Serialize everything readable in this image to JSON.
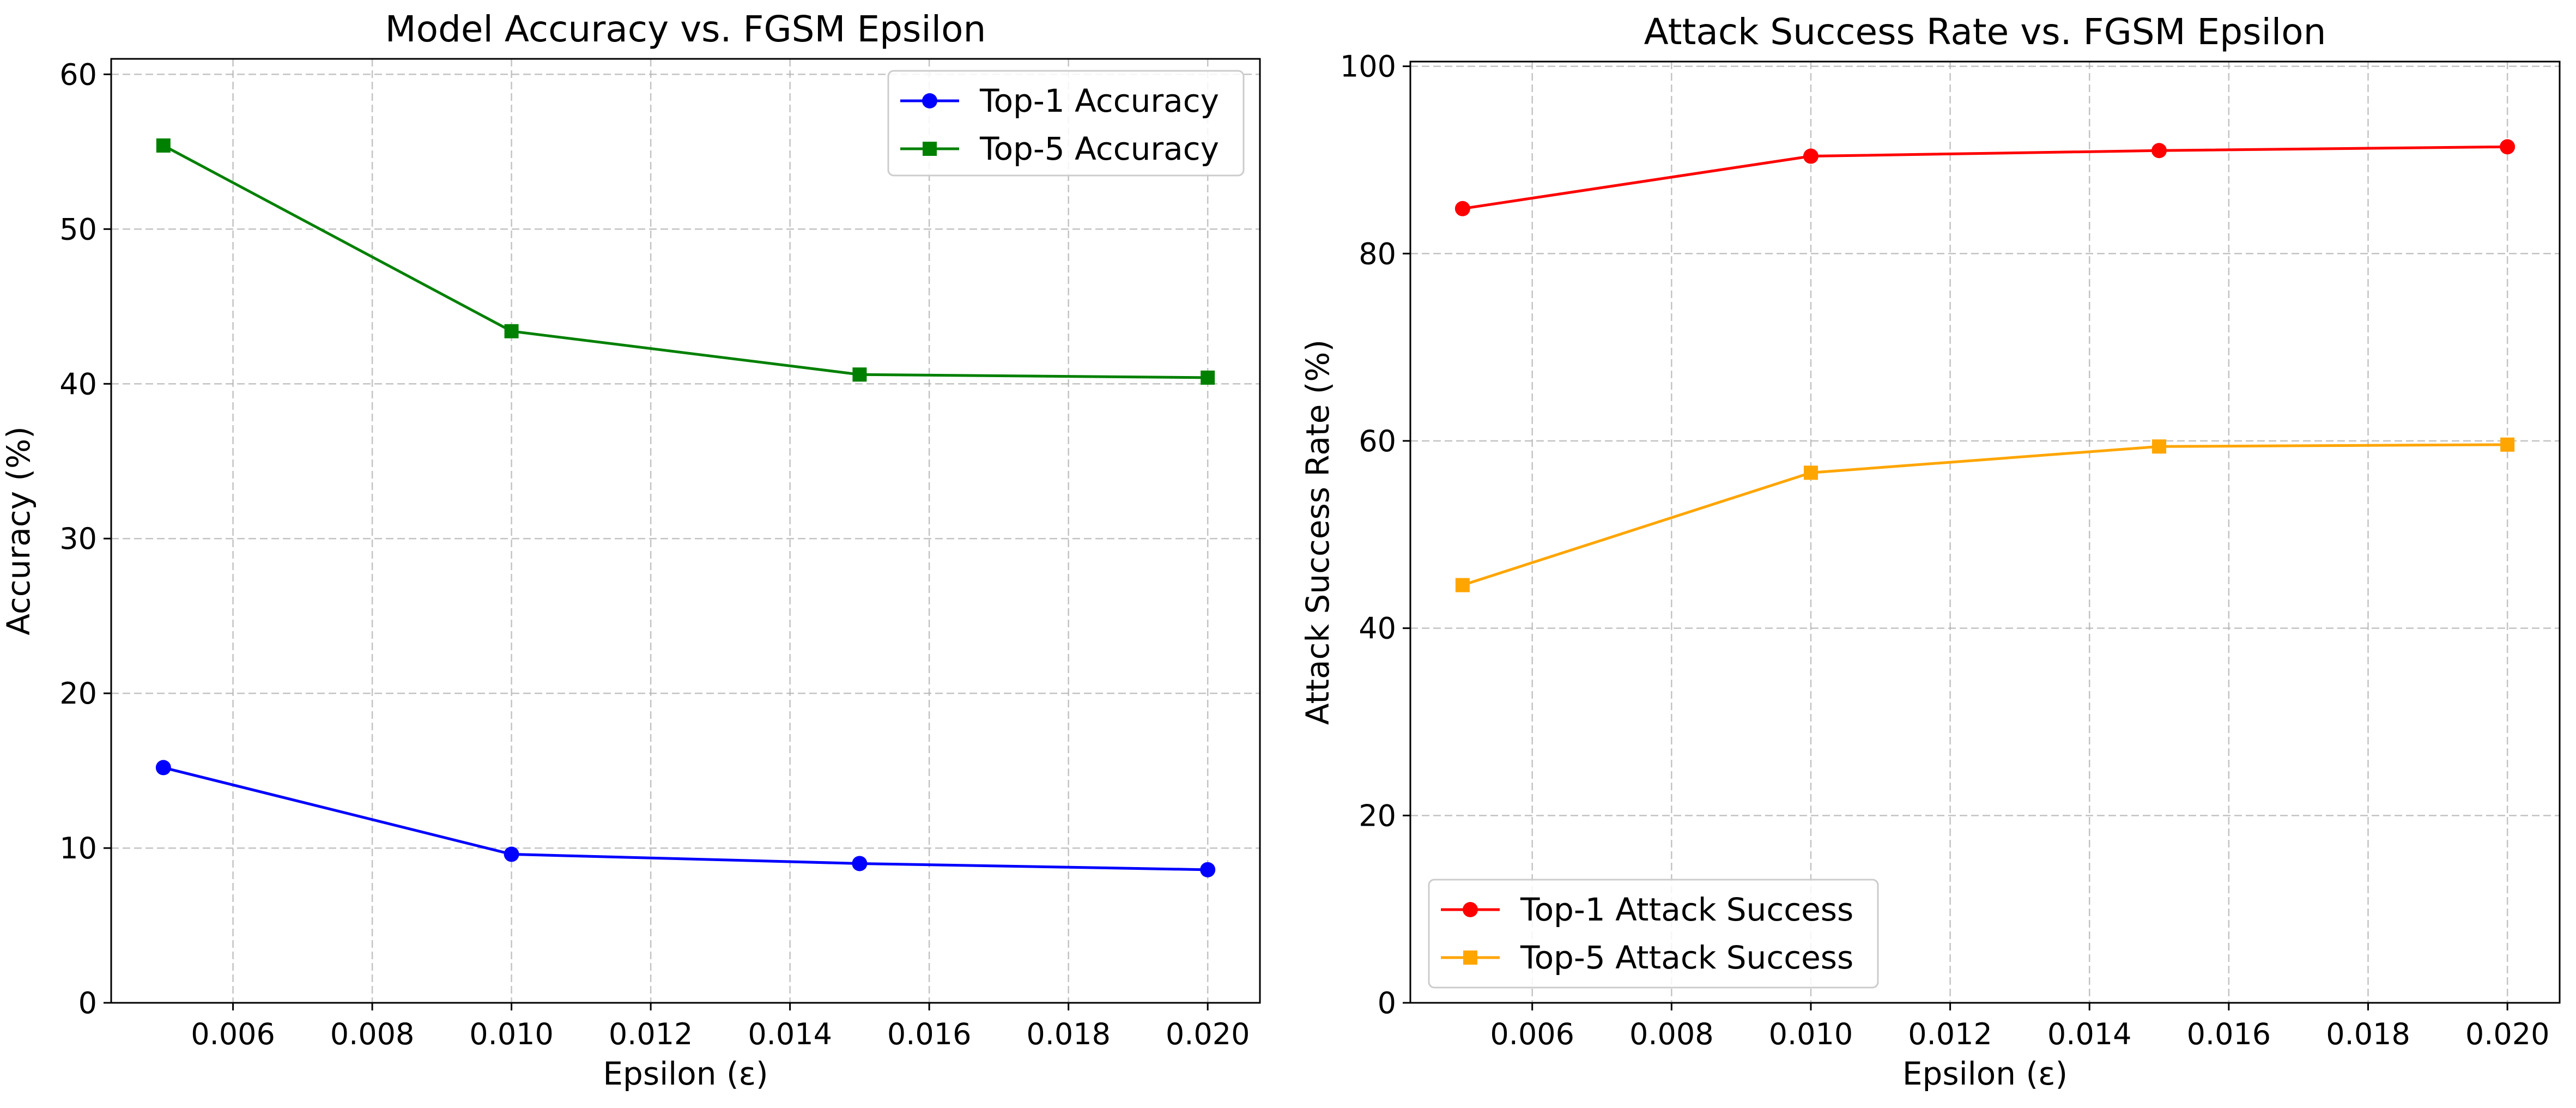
{
  "chart_data": [
    {
      "type": "line",
      "title": "Model Accuracy vs. FGSM Epsilon",
      "xlabel": "Epsilon (ε)",
      "ylabel": "Accuracy (%)",
      "xlim": [
        0.00425,
        0.02075
      ],
      "ylim": [
        0,
        61
      ],
      "xticks": [
        "0.006",
        "0.008",
        "0.010",
        "0.012",
        "0.014",
        "0.016",
        "0.018",
        "0.020"
      ],
      "yticks": [
        "0",
        "10",
        "20",
        "30",
        "40",
        "50",
        "60"
      ],
      "grid": true,
      "legend_position": "top-right",
      "x": [
        0.005,
        0.01,
        0.015,
        0.02
      ],
      "series": [
        {
          "name": "Top-1 Accuracy",
          "color": "#0000ff",
          "marker": "circle",
          "values": [
            15.2,
            9.6,
            9.0,
            8.6
          ]
        },
        {
          "name": "Top-5 Accuracy",
          "color": "#008000",
          "marker": "square",
          "values": [
            55.4,
            43.4,
            40.6,
            40.4
          ]
        }
      ]
    },
    {
      "type": "line",
      "title": "Attack Success Rate vs. FGSM Epsilon",
      "xlabel": "Epsilon (ε)",
      "ylabel": "Attack Success Rate (%)",
      "xlim": [
        0.00425,
        0.02075
      ],
      "ylim": [
        0,
        100.5
      ],
      "xticks": [
        "0.006",
        "0.008",
        "0.010",
        "0.012",
        "0.014",
        "0.016",
        "0.018",
        "0.020"
      ],
      "yticks": [
        "0",
        "20",
        "40",
        "60",
        "80",
        "100"
      ],
      "grid": true,
      "legend_position": "bottom-left",
      "x": [
        0.005,
        0.01,
        0.015,
        0.02
      ],
      "series": [
        {
          "name": "Top-1 Attack Success",
          "color": "#ff0000",
          "marker": "circle",
          "values": [
            84.8,
            90.4,
            91.0,
            91.4
          ]
        },
        {
          "name": "Top-5 Attack Success",
          "color": "#ffa500",
          "marker": "square",
          "values": [
            44.6,
            56.6,
            59.4,
            59.6
          ]
        }
      ]
    }
  ]
}
